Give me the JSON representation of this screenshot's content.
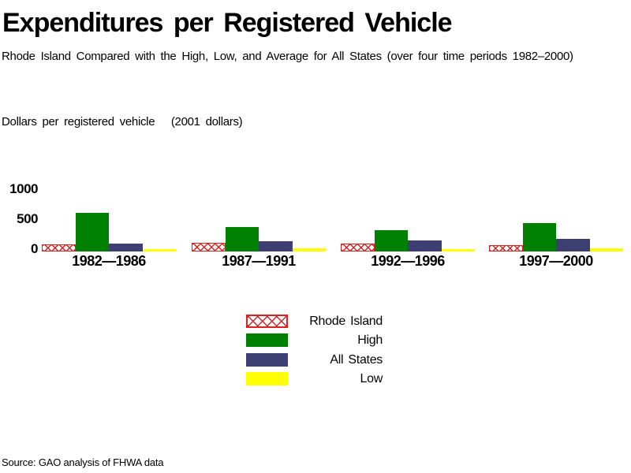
{
  "title": "Expenditures per Registered Vehicle",
  "subtitle": "Rhode Island Compared with the High, Low, and Average for All States (over four time periods 1982–2000)",
  "axis_caption": "Dollars per registered vehicle   (2001 dollars)",
  "source_note": "Source: GAO analysis of FHWA data",
  "colors": {
    "rhode_island_red": "#DD2020",
    "high_green": "#008000",
    "all_states_navy": "#3D3F73",
    "low_yellow": "#FFFF00",
    "text": "#000000",
    "background": "#FFFFFF"
  },
  "chart_data": {
    "type": "bar",
    "title": "Expenditures per Registered Vehicle",
    "subtitle": "Rhode Island Compared with the High, Low, and Average for All States (over four time periods 1982–2000)",
    "ylabel": "Dollars per registered vehicle (2001 dollars)",
    "ylim": [
      0,
      1000
    ],
    "yticks": [
      0,
      500,
      1000
    ],
    "grid": false,
    "legend_position": "bottom-center",
    "categories": [
      "1982—1986",
      "1987—1991",
      "1992—1996",
      "1997—2000"
    ],
    "series": [
      {
        "name": "Rhode Island",
        "style": "red-crosshatch",
        "values": [
          125,
          145,
          130,
          105
        ]
      },
      {
        "name": "High",
        "style": "solid-green",
        "values": [
          645,
          410,
          355,
          475
        ]
      },
      {
        "name": "All States",
        "style": "solid-navy",
        "values": [
          130,
          170,
          190,
          210
        ]
      },
      {
        "name": "Low",
        "style": "solid-yellow",
        "values": [
          40,
          50,
          40,
          50
        ]
      }
    ]
  },
  "legend": {
    "items": [
      {
        "label": "Rhode Island"
      },
      {
        "label": "High"
      },
      {
        "label": "All States"
      },
      {
        "label": "Low"
      }
    ]
  }
}
